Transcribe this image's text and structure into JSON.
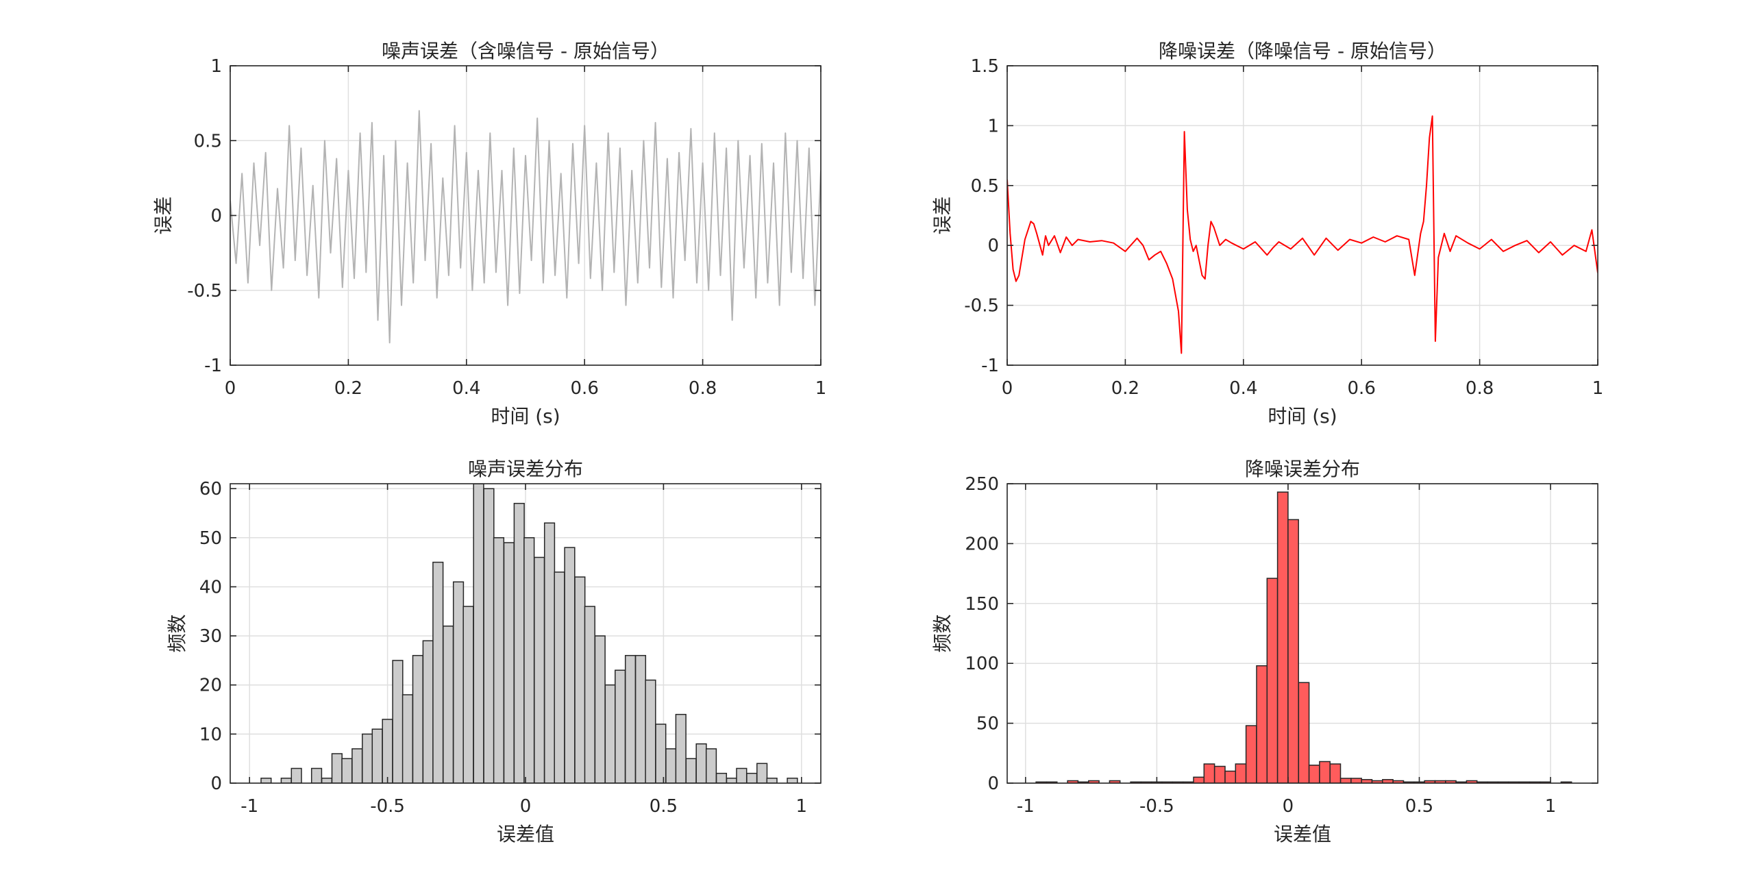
{
  "chart_data": [
    {
      "type": "line",
      "title": "噪声误差（含噪信号 - 原始信号）",
      "xlabel": "时间 (s)",
      "ylabel": "误差",
      "xlim": [
        0,
        1
      ],
      "ylim": [
        -1,
        1
      ],
      "xticks": [
        0,
        0.2,
        0.4,
        0.6,
        0.8,
        1
      ],
      "xtick_labels": [
        "0",
        "0.2",
        "0.4",
        "0.6",
        "0.8",
        "1"
      ],
      "yticks": [
        -1,
        -0.5,
        0,
        0.5,
        1
      ],
      "ytick_labels": [
        "-1",
        "-0.5",
        "0",
        "0.5",
        "1"
      ],
      "grid": true,
      "color": "#b3b3b3",
      "series": [
        {
          "x": [
            0,
            0.01,
            0.02,
            0.03,
            0.04,
            0.05,
            0.06,
            0.07,
            0.08,
            0.09,
            0.1,
            0.11,
            0.12,
            0.13,
            0.14,
            0.15,
            0.16,
            0.17,
            0.18,
            0.19,
            0.2,
            0.21,
            0.22,
            0.23,
            0.24,
            0.25,
            0.26,
            0.27,
            0.28,
            0.29,
            0.3,
            0.31,
            0.32,
            0.33,
            0.34,
            0.35,
            0.36,
            0.37,
            0.38,
            0.39,
            0.4,
            0.41,
            0.42,
            0.43,
            0.44,
            0.45,
            0.46,
            0.47,
            0.48,
            0.49,
            0.5,
            0.51,
            0.52,
            0.53,
            0.54,
            0.55,
            0.56,
            0.57,
            0.58,
            0.59,
            0.6,
            0.61,
            0.62,
            0.63,
            0.64,
            0.65,
            0.66,
            0.67,
            0.68,
            0.69,
            0.7,
            0.71,
            0.72,
            0.73,
            0.74,
            0.75,
            0.76,
            0.77,
            0.78,
            0.79,
            0.8,
            0.81,
            0.82,
            0.83,
            0.84,
            0.85,
            0.86,
            0.87,
            0.88,
            0.89,
            0.9,
            0.91,
            0.92,
            0.93,
            0.94,
            0.95,
            0.96,
            0.97,
            0.98,
            0.99,
            1
          ],
          "y": [
            0.1,
            -0.32,
            0.28,
            -0.45,
            0.35,
            -0.2,
            0.42,
            -0.5,
            0.18,
            -0.35,
            0.6,
            -0.3,
            0.45,
            -0.4,
            0.2,
            -0.55,
            0.5,
            -0.25,
            0.38,
            -0.48,
            0.3,
            -0.42,
            0.55,
            -0.38,
            0.62,
            -0.7,
            0.4,
            -0.85,
            0.5,
            -0.6,
            0.35,
            -0.45,
            0.7,
            -0.3,
            0.48,
            -0.55,
            0.25,
            -0.4,
            0.6,
            -0.35,
            0.42,
            -0.5,
            0.3,
            -0.45,
            0.55,
            -0.38,
            0.3,
            -0.6,
            0.45,
            -0.52,
            0.4,
            -0.3,
            0.65,
            -0.45,
            0.5,
            -0.4,
            0.28,
            -0.55,
            0.48,
            -0.32,
            0.6,
            -0.42,
            0.35,
            -0.5,
            0.55,
            -0.38,
            0.45,
            -0.6,
            0.3,
            -0.45,
            0.5,
            -0.35,
            0.62,
            -0.48,
            0.38,
            -0.55,
            0.42,
            -0.3,
            0.58,
            -0.45,
            0.35,
            -0.5,
            0.55,
            -0.4,
            0.45,
            -0.7,
            0.5,
            -0.35,
            0.4,
            -0.55,
            0.48,
            -0.45,
            0.35,
            -0.6,
            0.55,
            -0.38,
            0.5,
            -0.42,
            0.45,
            -0.6,
            0.3
          ]
        }
      ]
    },
    {
      "type": "line",
      "title": "降噪误差（降噪信号 - 原始信号）",
      "xlabel": "时间 (s)",
      "ylabel": "误差",
      "xlim": [
        0,
        1
      ],
      "ylim": [
        -1,
        1.5
      ],
      "xticks": [
        0,
        0.2,
        0.4,
        0.6,
        0.8,
        1
      ],
      "xtick_labels": [
        "0",
        "0.2",
        "0.4",
        "0.6",
        "0.8",
        "1"
      ],
      "yticks": [
        -1,
        -0.5,
        0,
        0.5,
        1,
        1.5
      ],
      "ytick_labels": [
        "-1",
        "-0.5",
        "0",
        "0.5",
        "1",
        "1.5"
      ],
      "grid": true,
      "color": "#ff0000",
      "series": [
        {
          "x": [
            0,
            0.005,
            0.01,
            0.015,
            0.02,
            0.03,
            0.04,
            0.045,
            0.05,
            0.06,
            0.065,
            0.07,
            0.08,
            0.09,
            0.1,
            0.11,
            0.12,
            0.14,
            0.16,
            0.18,
            0.2,
            0.22,
            0.23,
            0.24,
            0.25,
            0.26,
            0.27,
            0.28,
            0.29,
            0.295,
            0.3,
            0.305,
            0.31,
            0.315,
            0.32,
            0.33,
            0.335,
            0.34,
            0.345,
            0.35,
            0.36,
            0.37,
            0.38,
            0.4,
            0.42,
            0.44,
            0.45,
            0.46,
            0.48,
            0.5,
            0.52,
            0.54,
            0.56,
            0.58,
            0.6,
            0.62,
            0.64,
            0.66,
            0.68,
            0.69,
            0.7,
            0.705,
            0.71,
            0.715,
            0.72,
            0.725,
            0.73,
            0.74,
            0.75,
            0.76,
            0.78,
            0.8,
            0.82,
            0.84,
            0.86,
            0.88,
            0.9,
            0.92,
            0.94,
            0.96,
            0.98,
            0.99,
            1
          ],
          "y": [
            0.55,
            0.1,
            -0.2,
            -0.3,
            -0.25,
            0.05,
            0.2,
            0.18,
            0.1,
            -0.08,
            0.08,
            0.0,
            0.08,
            -0.06,
            0.07,
            0.0,
            0.05,
            0.03,
            0.04,
            0.02,
            -0.05,
            0.06,
            0.0,
            -0.12,
            -0.08,
            -0.05,
            -0.15,
            -0.28,
            -0.55,
            -0.9,
            0.95,
            0.3,
            0.05,
            -0.05,
            0.0,
            -0.25,
            -0.28,
            0.0,
            0.2,
            0.15,
            0.0,
            0.05,
            0.02,
            -0.03,
            0.03,
            -0.08,
            -0.02,
            0.03,
            -0.03,
            0.06,
            -0.08,
            0.06,
            -0.04,
            0.05,
            0.02,
            0.07,
            0.03,
            0.08,
            0.05,
            -0.25,
            0.1,
            0.2,
            0.5,
            0.9,
            1.08,
            -0.8,
            -0.1,
            0.1,
            -0.05,
            0.08,
            0.02,
            -0.03,
            0.05,
            -0.05,
            0.0,
            0.04,
            -0.06,
            0.03,
            -0.08,
            0.0,
            -0.05,
            0.13,
            -0.23
          ]
        }
      ]
    },
    {
      "type": "bar",
      "title": "噪声误差分布",
      "xlabel": "误差值",
      "ylabel": "频数",
      "xlim": [
        -1.07,
        1.07
      ],
      "ylim": [
        0,
        61
      ],
      "xticks": [
        -1,
        -0.5,
        0,
        0.5,
        1
      ],
      "xtick_labels": [
        "-1",
        "-0.5",
        "0",
        "0.5",
        "1"
      ],
      "yticks": [
        0,
        10,
        20,
        30,
        40,
        50,
        60
      ],
      "ytick_labels": [
        "0",
        "10",
        "20",
        "30",
        "40",
        "50",
        "60"
      ],
      "grid": true,
      "color": "#cccccc",
      "bin_width": 0.0366,
      "bin_centers": [
        -0.94,
        -0.903,
        -0.867,
        -0.83,
        -0.793,
        -0.757,
        -0.72,
        -0.683,
        -0.647,
        -0.61,
        -0.573,
        -0.537,
        -0.5,
        -0.463,
        -0.427,
        -0.39,
        -0.353,
        -0.317,
        -0.28,
        -0.243,
        -0.207,
        -0.17,
        -0.133,
        -0.097,
        -0.06,
        -0.023,
        0.013,
        0.05,
        0.087,
        0.123,
        0.16,
        0.197,
        0.233,
        0.27,
        0.307,
        0.343,
        0.38,
        0.417,
        0.453,
        0.49,
        0.527,
        0.563,
        0.6,
        0.637,
        0.673,
        0.71,
        0.747,
        0.783,
        0.82,
        0.857,
        0.893,
        0.93,
        0.967
      ],
      "values": [
        1,
        0,
        1,
        3,
        0,
        3,
        1,
        6,
        5,
        7,
        10,
        11,
        13,
        25,
        18,
        26,
        29,
        45,
        32,
        41,
        36,
        61,
        60,
        50,
        49,
        57,
        50,
        46,
        53,
        43,
        48,
        42,
        36,
        30,
        20,
        23,
        26,
        26,
        21,
        12,
        7,
        14,
        5,
        8,
        7,
        2,
        1,
        3,
        2,
        4,
        1,
        0,
        1
      ]
    },
    {
      "type": "bar",
      "title": "降噪误差分布",
      "xlabel": "误差值",
      "ylabel": "频数",
      "xlim": [
        -1.07,
        1.18
      ],
      "ylim": [
        0,
        250
      ],
      "xticks": [
        -1,
        -0.5,
        0,
        0.5,
        1
      ],
      "xtick_labels": [
        "-1",
        "-0.5",
        "0",
        "0.5",
        "1"
      ],
      "yticks": [
        0,
        50,
        100,
        150,
        200,
        250
      ],
      "ytick_labels": [
        "0",
        "50",
        "100",
        "150",
        "200",
        "250"
      ],
      "grid": true,
      "color": "#ff5c5c",
      "bin_width": 0.04,
      "bin_centers": [
        -0.94,
        -0.9,
        -0.86,
        -0.82,
        -0.78,
        -0.74,
        -0.7,
        -0.66,
        -0.62,
        -0.58,
        -0.54,
        -0.5,
        -0.46,
        -0.42,
        -0.38,
        -0.34,
        -0.3,
        -0.26,
        -0.22,
        -0.18,
        -0.14,
        -0.1,
        -0.06,
        -0.02,
        0.02,
        0.06,
        0.1,
        0.14,
        0.18,
        0.22,
        0.26,
        0.3,
        0.34,
        0.38,
        0.42,
        0.46,
        0.5,
        0.54,
        0.58,
        0.62,
        0.66,
        0.7,
        0.74,
        0.78,
        0.82,
        0.86,
        0.9,
        0.94,
        0.98,
        1.02,
        1.06
      ],
      "values": [
        1,
        1,
        0,
        2,
        1,
        2,
        0,
        2,
        0,
        1,
        1,
        1,
        1,
        1,
        1,
        5,
        16,
        14,
        10,
        16,
        48,
        98,
        171,
        243,
        220,
        84,
        15,
        18,
        16,
        4,
        4,
        3,
        2,
        3,
        2,
        1,
        1,
        2,
        2,
        2,
        1,
        2,
        1,
        1,
        1,
        1,
        1,
        1,
        1,
        0,
        1
      ]
    }
  ]
}
